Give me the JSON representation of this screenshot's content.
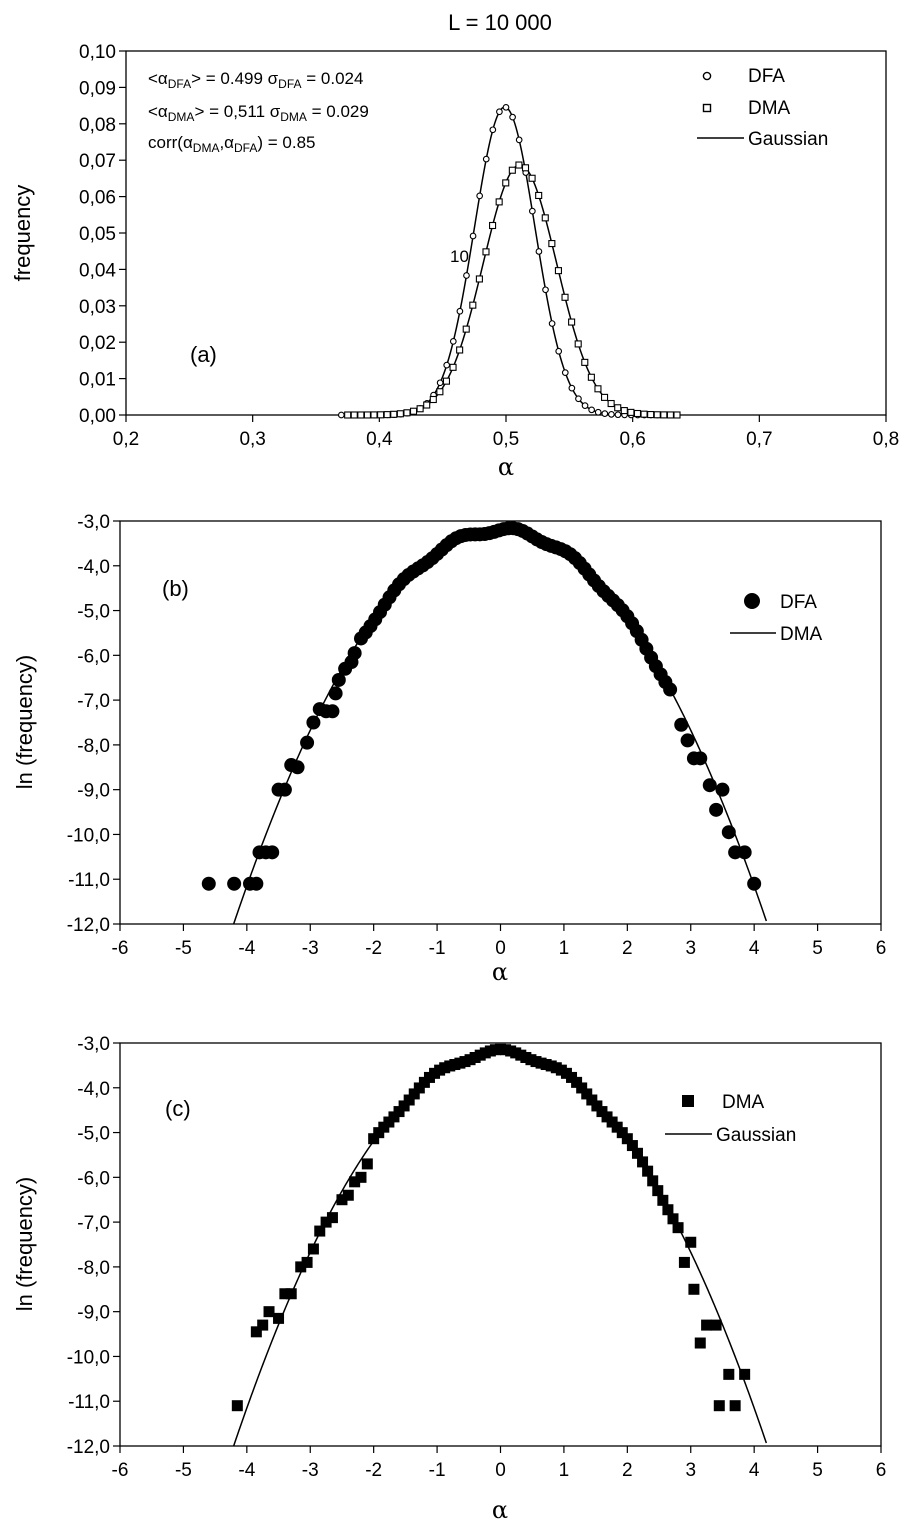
{
  "figure_title": "L = 10 000",
  "chart_data": [
    {
      "id": "a",
      "type": "scatter",
      "panel_label": "(a)",
      "xlabel": "α",
      "ylabel": "frequency",
      "xlim": [
        0.2,
        0.8
      ],
      "ylim": [
        0.0,
        0.1
      ],
      "xticks": [
        "0,2",
        "0,3",
        "0,4",
        "0,5",
        "0,6",
        "0,7",
        "0,8"
      ],
      "yticks": [
        "0,00",
        "0,01",
        "0,02",
        "0,03",
        "0,04",
        "0,05",
        "0,06",
        "0,07",
        "0,08",
        "0,09",
        "0,10"
      ],
      "grid": false,
      "legend_position": "top-right",
      "legend": [
        {
          "label": "DFA",
          "marker": "open-circle"
        },
        {
          "label": "DMA",
          "marker": "open-square"
        },
        {
          "label": "Gaussian",
          "marker": "line"
        }
      ],
      "annotations": {
        "line1_prefix": "<α",
        "line1_sub": "DFA",
        "line1_mid": "> = 0.499   σ",
        "line1_sub2": "DFA",
        "line1_end": " = 0.024",
        "line2_prefix": "<α",
        "line2_sub": "DMA",
        "line2_mid": "> = 0,511  σ",
        "line2_sub2": "DMA",
        "line2_end": " = 0.029",
        "line3_prefix": "corr(α",
        "line3_sub": "DMA",
        "line3_mid": ",α",
        "line3_sub2": "DFA",
        "line3_end": ") = 0.85",
        "stray_label": "10"
      },
      "series": [
        {
          "name": "DFA",
          "marker": "open-circle",
          "mean": 0.499,
          "sigma": 0.024,
          "peak": 0.0846,
          "x_min": 0.37,
          "x_max": 0.633,
          "step": 0.0052
        },
        {
          "name": "DMA",
          "marker": "open-square",
          "mean": 0.511,
          "sigma": 0.029,
          "peak": 0.0687,
          "x_min": 0.375,
          "x_max": 0.635,
          "step": 0.0052
        }
      ]
    },
    {
      "id": "b",
      "type": "scatter",
      "panel_label": "(b)",
      "xlabel": "α",
      "ylabel": "ln (frequency)",
      "xlim": [
        -6,
        6
      ],
      "ylim": [
        -12.0,
        -3.0
      ],
      "xticks": [
        "-6",
        "-5",
        "-4",
        "-3",
        "-2",
        "-1",
        "0",
        "1",
        "2",
        "3",
        "4",
        "5",
        "6"
      ],
      "yticks": [
        "-3,0",
        "-4,0",
        "-5,0",
        "-6,0",
        "-7,0",
        "-8,0",
        "-9,0",
        "-10,0",
        "-11,0",
        "-12,0"
      ],
      "grid": false,
      "legend_position": "top-right",
      "legend": [
        {
          "label": "DFA",
          "marker": "filled-circle"
        },
        {
          "label": "DMA",
          "marker": "line"
        }
      ],
      "curve": {
        "peak": -3.2,
        "k": 0.497
      },
      "series": [
        {
          "name": "DFA",
          "marker": "filled-circle",
          "points": [
            [
              -4.6,
              -11.1
            ],
            [
              -4.2,
              -11.1
            ],
            [
              -3.95,
              -11.1
            ],
            [
              -3.85,
              -11.1
            ],
            [
              -3.8,
              -10.4
            ],
            [
              -3.7,
              -10.4
            ],
            [
              -3.6,
              -10.4
            ],
            [
              -3.5,
              -9.0
            ],
            [
              -3.4,
              -9.0
            ],
            [
              -3.3,
              -8.45
            ],
            [
              -3.2,
              -8.5
            ],
            [
              -3.05,
              -7.95
            ],
            [
              -2.95,
              -7.5
            ],
            [
              -2.85,
              -7.2
            ],
            [
              -2.75,
              -7.25
            ],
            [
              -2.65,
              -7.25
            ],
            [
              -2.6,
              -6.85
            ],
            [
              -2.55,
              -6.55
            ],
            [
              -2.45,
              -6.3
            ],
            [
              -2.35,
              -6.15
            ],
            [
              -2.3,
              -5.95
            ]
          ]
        }
      ]
    },
    {
      "id": "c",
      "type": "scatter",
      "panel_label": "(c)",
      "xlabel": "α",
      "ylabel": "ln (frequency)",
      "xlim": [
        -6,
        6
      ],
      "ylim": [
        -12.0,
        -3.0
      ],
      "xticks": [
        "-6",
        "-5",
        "-4",
        "-3",
        "-2",
        "-1",
        "0",
        "1",
        "2",
        "3",
        "4",
        "5",
        "6"
      ],
      "yticks": [
        "-3,0",
        "-4,0",
        "-5,0",
        "-6,0",
        "-7,0",
        "-8,0",
        "-9,0",
        "-10,0",
        "-11,0",
        "-12,0"
      ],
      "grid": false,
      "legend_position": "top-right",
      "legend": [
        {
          "label": "DMA",
          "marker": "filled-square"
        },
        {
          "label": "Gaussian",
          "marker": "line"
        }
      ],
      "curve": {
        "peak": -3.2,
        "k": 0.497
      },
      "series": [
        {
          "name": "DMA",
          "marker": "filled-square",
          "points": [
            [
              -4.15,
              -11.1
            ],
            [
              -3.85,
              -9.45
            ],
            [
              -3.75,
              -9.3
            ],
            [
              -3.65,
              -9.0
            ],
            [
              -3.5,
              -9.15
            ],
            [
              -3.4,
              -8.6
            ],
            [
              -3.3,
              -8.6
            ],
            [
              -3.15,
              -8.0
            ],
            [
              -3.05,
              -7.9
            ],
            [
              -2.95,
              -7.6
            ],
            [
              -2.85,
              -7.2
            ],
            [
              -2.75,
              -7.0
            ],
            [
              -2.65,
              -6.9
            ],
            [
              -2.5,
              -6.5
            ],
            [
              -2.4,
              -6.4
            ],
            [
              -2.3,
              -6.1
            ],
            [
              -2.2,
              -6.0
            ],
            [
              -2.1,
              -5.7
            ],
            [
              3.0,
              -7.45
            ],
            [
              2.9,
              -7.9
            ],
            [
              3.05,
              -8.5
            ],
            [
              3.15,
              -9.7
            ],
            [
              3.25,
              -9.3
            ],
            [
              3.4,
              -9.3
            ],
            [
              3.45,
              -11.1
            ],
            [
              3.6,
              -10.4
            ],
            [
              3.7,
              -11.1
            ],
            [
              3.85,
              -10.4
            ]
          ]
        }
      ]
    }
  ]
}
